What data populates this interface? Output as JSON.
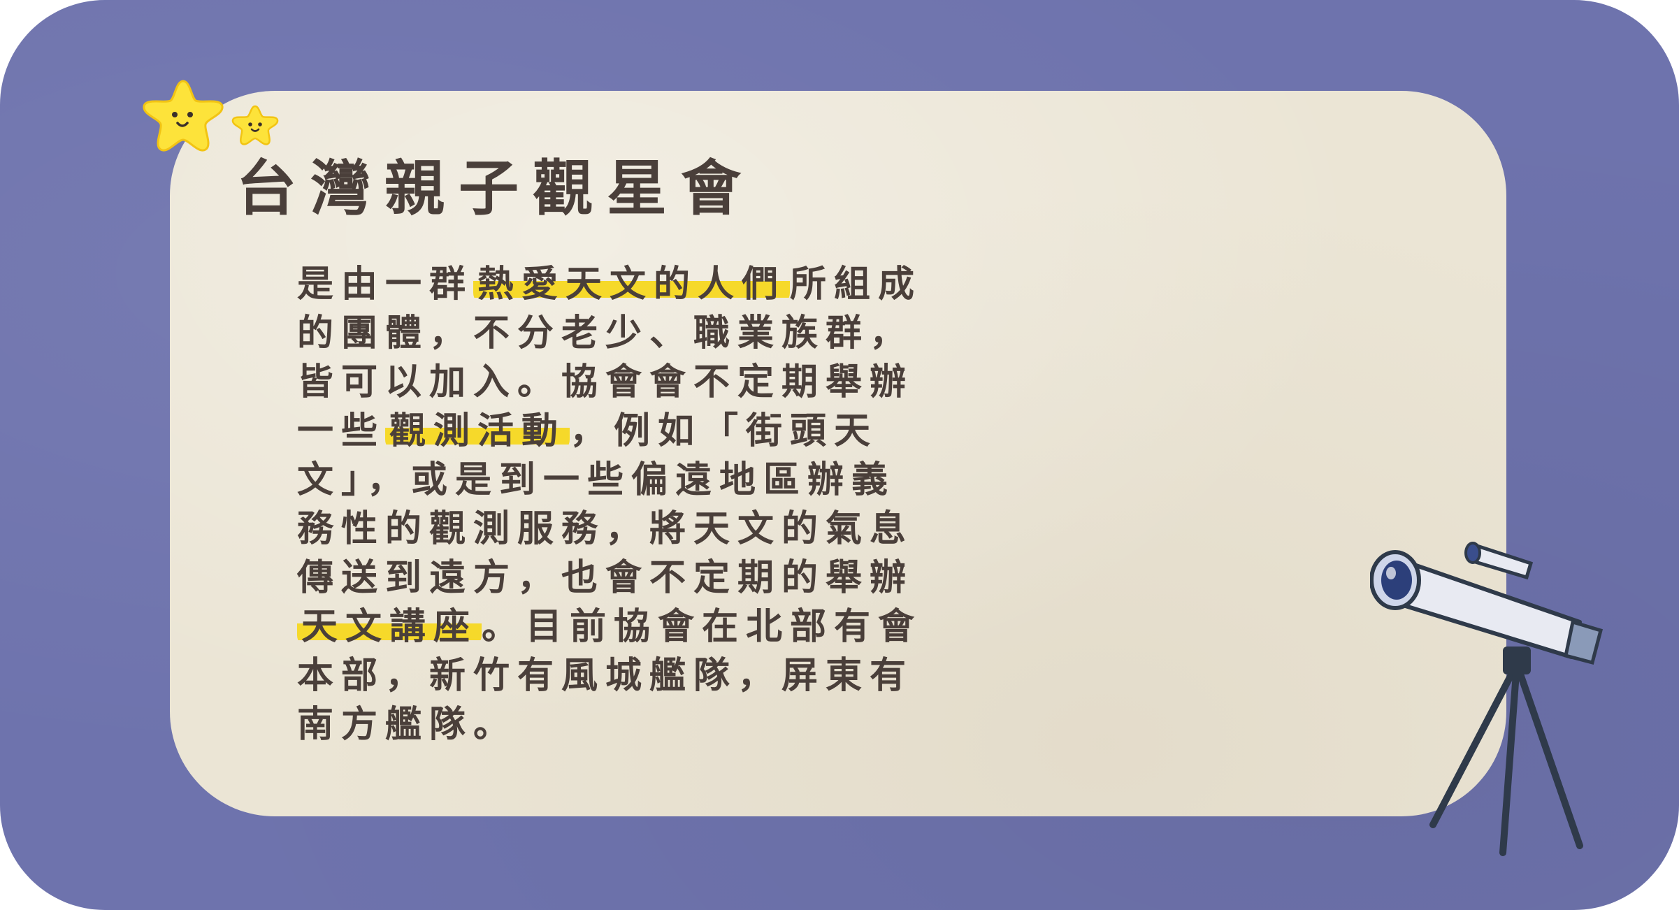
{
  "title": "台灣親子觀星會",
  "body_lines": [
    {
      "a": "是由一群",
      "h": "熱愛天文的人們",
      "b": "所組成"
    },
    {
      "a": "的團體，不分老少、職業族群，",
      "h": "",
      "b": ""
    },
    {
      "a": "皆可以加入。協會會不定期舉辦",
      "h": "",
      "b": ""
    },
    {
      "a": "一些",
      "h": "觀測活動",
      "b": "，例如「街頭天"
    },
    {
      "a": "文」，或是到一些偏遠地區辦義",
      "h": "",
      "b": ""
    },
    {
      "a": "務性的觀測服務，將天文的氣息",
      "h": "",
      "b": ""
    },
    {
      "a": "傳送到遠方，也會不定期的舉辦",
      "h": "",
      "b": ""
    },
    {
      "a": "",
      "h": "天文講座",
      "b": "。目前協會在北部有會"
    },
    {
      "a": "本部，新竹有風城艦隊，屏東有",
      "h": "",
      "b": ""
    },
    {
      "a": "南方艦隊。",
      "h": "",
      "b": ""
    }
  ],
  "colors": {
    "frame": "#6e73ad",
    "card": "#ebe5d5",
    "text": "#4a3f3a",
    "highlight": "#f6d92a",
    "star": "#fde33a"
  },
  "icons": [
    "star-face-icon",
    "small-star-face-icon",
    "telescope-icon"
  ]
}
